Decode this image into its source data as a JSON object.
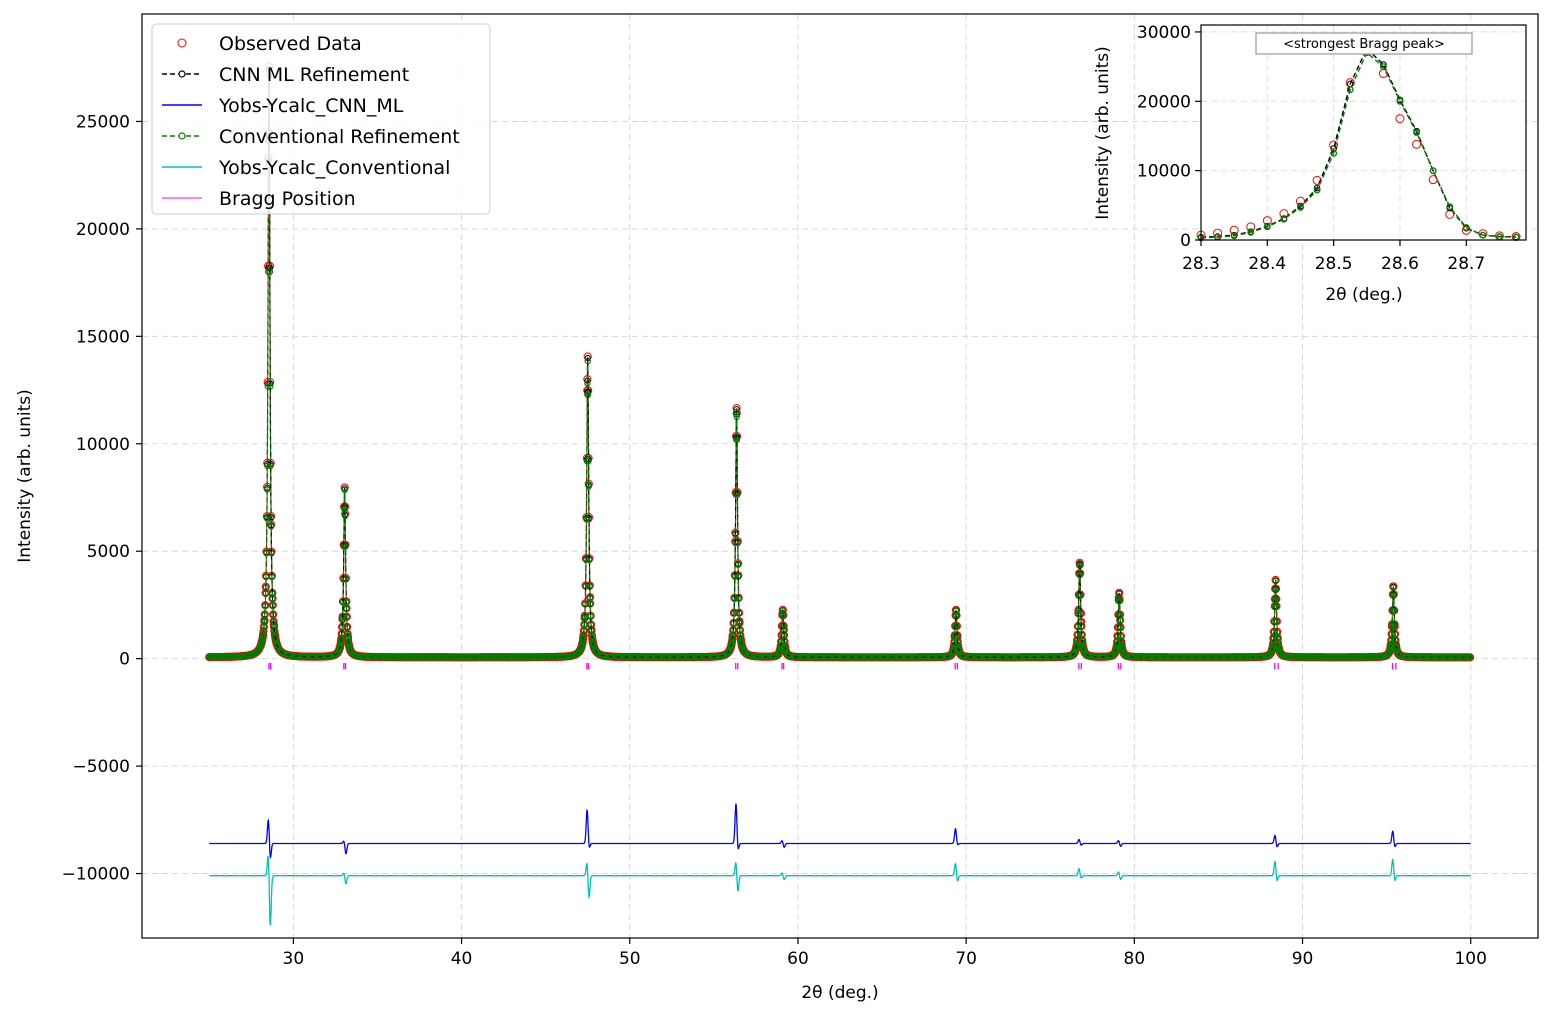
{
  "chart_data": [
    {
      "type": "line",
      "role": "main",
      "xlabel": "2θ (deg.)",
      "ylabel": "Intensity (arb. units)",
      "xlim": [
        21,
        104
      ],
      "ylim": [
        -13000,
        30000
      ],
      "x_ticks": [
        30,
        40,
        50,
        60,
        70,
        80,
        90,
        100
      ],
      "y_ticks": [
        -10000,
        -5000,
        0,
        5000,
        10000,
        15000,
        20000,
        25000
      ],
      "y_tick_labels": [
        "−10000",
        "−5000",
        "0",
        "5000",
        "10000",
        "15000",
        "20000",
        "25000"
      ],
      "grid": true,
      "legend_position": "upper-left",
      "x_range": [
        25,
        100
      ],
      "background_level": 60,
      "peaks": [
        {
          "center": 28.55,
          "height": 27500,
          "ml_residual_max": 1200,
          "ml_residual_min": -800,
          "conv_residual_max": 1200,
          "conv_residual_min": -2500
        },
        {
          "center": 33.05,
          "height": 7900,
          "ml_residual_max": 150,
          "ml_residual_min": -500,
          "conv_residual_max": 150,
          "conv_residual_min": -400
        },
        {
          "center": 47.5,
          "height": 14000,
          "ml_residual_max": 1600,
          "ml_residual_min": -300,
          "conv_residual_max": 700,
          "conv_residual_min": -1100
        },
        {
          "center": 56.35,
          "height": 11600,
          "ml_residual_max": 1900,
          "ml_residual_min": -400,
          "conv_residual_max": 700,
          "conv_residual_min": -800
        },
        {
          "center": 59.1,
          "height": 2200,
          "ml_residual_max": 150,
          "ml_residual_min": -200,
          "conv_residual_max": 150,
          "conv_residual_min": -200
        },
        {
          "center": 69.4,
          "height": 2200,
          "ml_residual_max": 700,
          "ml_residual_min": -100,
          "conv_residual_max": 600,
          "conv_residual_min": -300
        },
        {
          "center": 76.75,
          "height": 4400,
          "ml_residual_max": 200,
          "ml_residual_min": -100,
          "conv_residual_max": 350,
          "conv_residual_min": -150
        },
        {
          "center": 79.1,
          "height": 3000,
          "ml_residual_max": 150,
          "ml_residual_min": -150,
          "conv_residual_max": 200,
          "conv_residual_min": -200
        },
        {
          "center": 88.4,
          "height": 3600,
          "ml_residual_max": 400,
          "ml_residual_min": -200,
          "conv_residual_max": 700,
          "conv_residual_min": -300
        },
        {
          "center": 95.4,
          "height": 3300,
          "ml_residual_max": 600,
          "ml_residual_min": -200,
          "conv_residual_max": 800,
          "conv_residual_min": -300
        }
      ],
      "bragg_positions": [
        28.55,
        28.65,
        33.0,
        33.1,
        47.45,
        47.55,
        56.3,
        56.42,
        59.05,
        59.15,
        69.35,
        69.48,
        76.7,
        76.85,
        79.05,
        79.2,
        88.35,
        88.55,
        95.35,
        95.55
      ],
      "residual_offsets": {
        "ml": -8600,
        "conventional": -10100
      },
      "series": [
        {
          "name": "Observed Data",
          "color": "#ff0000",
          "style": "open-circle"
        },
        {
          "name": "CNN ML Refinement",
          "color": "#000000",
          "style": "dashed-line-circle"
        },
        {
          "name": "Yobs-Ycalc_CNN_ML",
          "color": "#0000ff",
          "style": "line"
        },
        {
          "name": "Conventional Refinement",
          "color": "#008000",
          "style": "dashed-line-circle"
        },
        {
          "name": "Yobs-Ycalc_Conventional",
          "color": "#00bfbf",
          "style": "line"
        },
        {
          "name": "Bragg Position",
          "color": "#ff00ff",
          "style": "tick"
        }
      ]
    },
    {
      "type": "line",
      "role": "inset",
      "xlabel": "2θ (deg.)",
      "ylabel": "Intensity (arb. units)",
      "xlim": [
        28.3,
        28.79
      ],
      "ylim": [
        0,
        31000
      ],
      "x_ticks": [
        28.3,
        28.4,
        28.5,
        28.6,
        28.7
      ],
      "x_tick_labels": [
        "28.3",
        "28.4",
        "28.5",
        "28.6",
        "28.7"
      ],
      "y_ticks": [
        0,
        10000,
        20000,
        30000
      ],
      "y_tick_labels": [
        "0",
        "10000",
        "20000",
        "30000"
      ],
      "annotation": "<strongest Bragg peak>",
      "x": [
        28.3,
        28.325,
        28.35,
        28.375,
        28.4,
        28.425,
        28.45,
        28.475,
        28.5,
        28.525,
        28.55,
        28.575,
        28.6,
        28.625,
        28.65,
        28.675,
        28.7,
        28.725,
        28.75,
        28.775
      ],
      "observed": [
        700,
        1000,
        1400,
        1900,
        2800,
        3800,
        5600,
        8600,
        13700,
        22700,
        27200,
        24000,
        17500,
        13800,
        8700,
        3700,
        1400,
        900,
        600,
        500
      ],
      "ml_refinement": [
        400,
        500,
        700,
        1200,
        2000,
        3100,
        4900,
        7500,
        13200,
        22500,
        27600,
        25300,
        20200,
        15700,
        10000,
        4600,
        1700,
        700,
        500,
        450
      ],
      "conventional": [
        300,
        400,
        600,
        1100,
        1900,
        3000,
        4700,
        7200,
        12500,
        21700,
        27000,
        25000,
        20000,
        15500,
        10000,
        4800,
        1800,
        700,
        450,
        400
      ]
    }
  ]
}
